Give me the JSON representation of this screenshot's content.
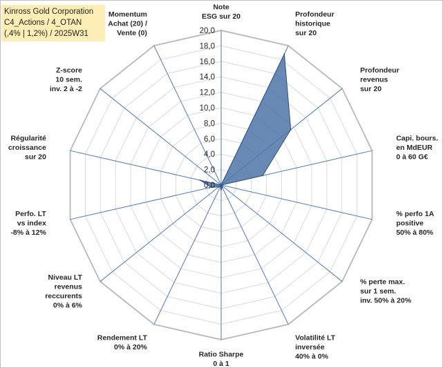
{
  "header": {
    "line1": "Kinross Gold Corporation",
    "line2": "C4_Actions / 4_OTAN",
    "line3": "(,4% | 1,2%) / 2025W31"
  },
  "chart_data": {
    "type": "radar",
    "rlim": [
      0,
      20
    ],
    "r_ticks": [
      "0,0",
      "2,0",
      "4,0",
      "6,0",
      "8,0",
      "10,0",
      "12,0",
      "14,0",
      "16,0",
      "18,0",
      "20,0"
    ],
    "grid": true,
    "legend": "none",
    "series_color": "#4f74a8",
    "series_edge": "#2e4f86",
    "axes": [
      {
        "lines": [
          "Note",
          "ESG sur 20"
        ]
      },
      {
        "lines": [
          "Profondeur",
          "historique",
          "sur 20"
        ]
      },
      {
        "lines": [
          "Profondeur",
          "revenus",
          "sur 20"
        ]
      },
      {
        "lines": [
          "Capi. bours.",
          "en MdEUR",
          "0 à 60 G€"
        ]
      },
      {
        "lines": [
          "% perfo 1A",
          "positive",
          "50% à 80%"
        ]
      },
      {
        "lines": [
          "% perte max.",
          "sur 1 sem.",
          "inv. 50% à 20%"
        ]
      },
      {
        "lines": [
          "Volatilité LT",
          "inversée",
          "40% à 0%"
        ]
      },
      {
        "lines": [
          "Ratio Sharpe",
          "0 à 1"
        ]
      },
      {
        "lines": [
          "Rendement LT",
          "0% à 20%"
        ]
      },
      {
        "lines": [
          "Niveau LT",
          "revenus",
          "reccurents",
          "0% à 6%"
        ]
      },
      {
        "lines": [
          "Perfo. LT",
          "vs index",
          "-8% à 12%"
        ]
      },
      {
        "lines": [
          "Régularité",
          "croissance",
          "sur 20"
        ]
      },
      {
        "lines": [
          "Z-score",
          "10 sem.",
          "inv. 2 à -2"
        ]
      },
      {
        "lines": [
          "Momentum",
          "Achat (20) /",
          "Vente (0)"
        ]
      }
    ],
    "values": [
      0,
      18.8,
      11.5,
      5.5,
      0,
      0.1,
      0.3,
      0.6,
      0.2,
      0.4,
      1.3,
      2.8,
      0,
      0
    ]
  }
}
